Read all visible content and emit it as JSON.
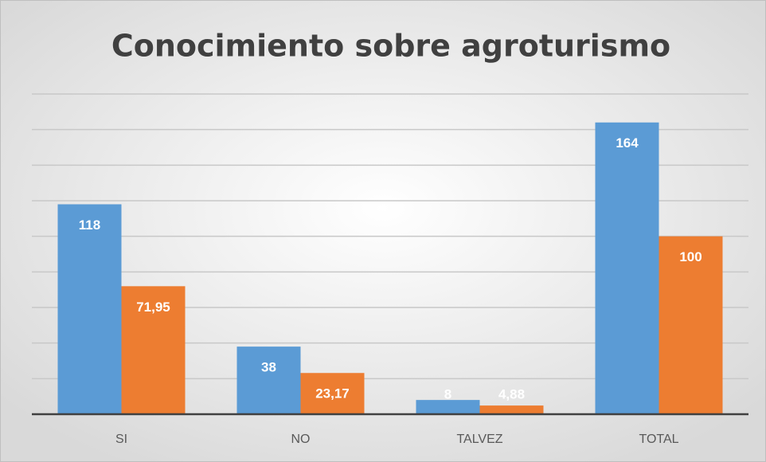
{
  "chart_data": {
    "type": "bar",
    "title": "Conocimiento sobre agroturismo",
    "categories": [
      "SI",
      "NO",
      "TALVEZ",
      "TOTAL"
    ],
    "series": [
      {
        "color": "#5b9bd5",
        "values": [
          118,
          38,
          8,
          164
        ]
      },
      {
        "color": "#ed7d31",
        "values": [
          71.95,
          23.17,
          4.88,
          100
        ],
        "value_labels": [
          "71,95",
          "23,17",
          "4,88",
          "100"
        ]
      }
    ],
    "ylim": [
      0,
      180
    ],
    "yticks": [
      0,
      20,
      40,
      60,
      80,
      100,
      120,
      140,
      160,
      180
    ],
    "grid": true,
    "y_tick_labels": false
  }
}
